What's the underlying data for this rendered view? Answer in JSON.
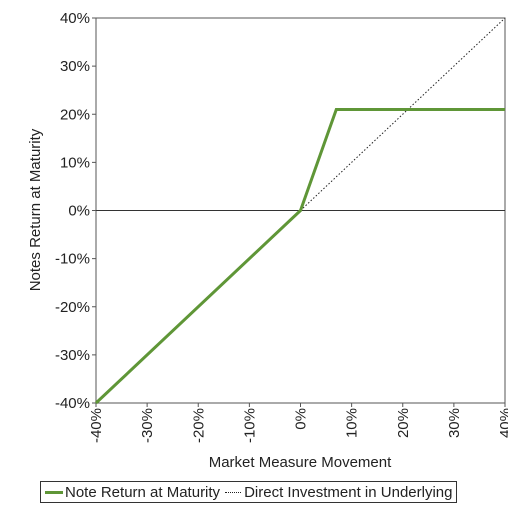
{
  "chart_data": {
    "type": "line",
    "xlabel": "Market Measure Movement",
    "ylabel": "Notes Return at Maturity",
    "xlim": [
      -40,
      40
    ],
    "ylim": [
      -40,
      40
    ],
    "x_ticks": [
      "-40%",
      "-30%",
      "-20%",
      "-10%",
      "0%",
      "10%",
      "20%",
      "30%",
      "40%"
    ],
    "y_ticks": [
      "40%",
      "30%",
      "20%",
      "10%",
      "0%",
      "-10%",
      "-20%",
      "-30%",
      "-40%"
    ],
    "x_tick_values": [
      -40,
      -30,
      -20,
      -10,
      0,
      10,
      20,
      30,
      40
    ],
    "y_tick_values": [
      40,
      30,
      20,
      10,
      0,
      -10,
      -20,
      -30,
      -40
    ],
    "legend_position": "bottom",
    "series": [
      {
        "name": "Note Return at Maturity",
        "style": "solid",
        "color": "#5f9637",
        "points": [
          [
            -40,
            -40
          ],
          [
            0,
            0
          ],
          [
            7,
            21
          ],
          [
            40,
            21
          ]
        ]
      },
      {
        "name": "Direct Investment in Underlying",
        "style": "dotted",
        "color": "#222222",
        "points": [
          [
            0,
            0
          ],
          [
            40,
            40
          ]
        ]
      }
    ]
  }
}
